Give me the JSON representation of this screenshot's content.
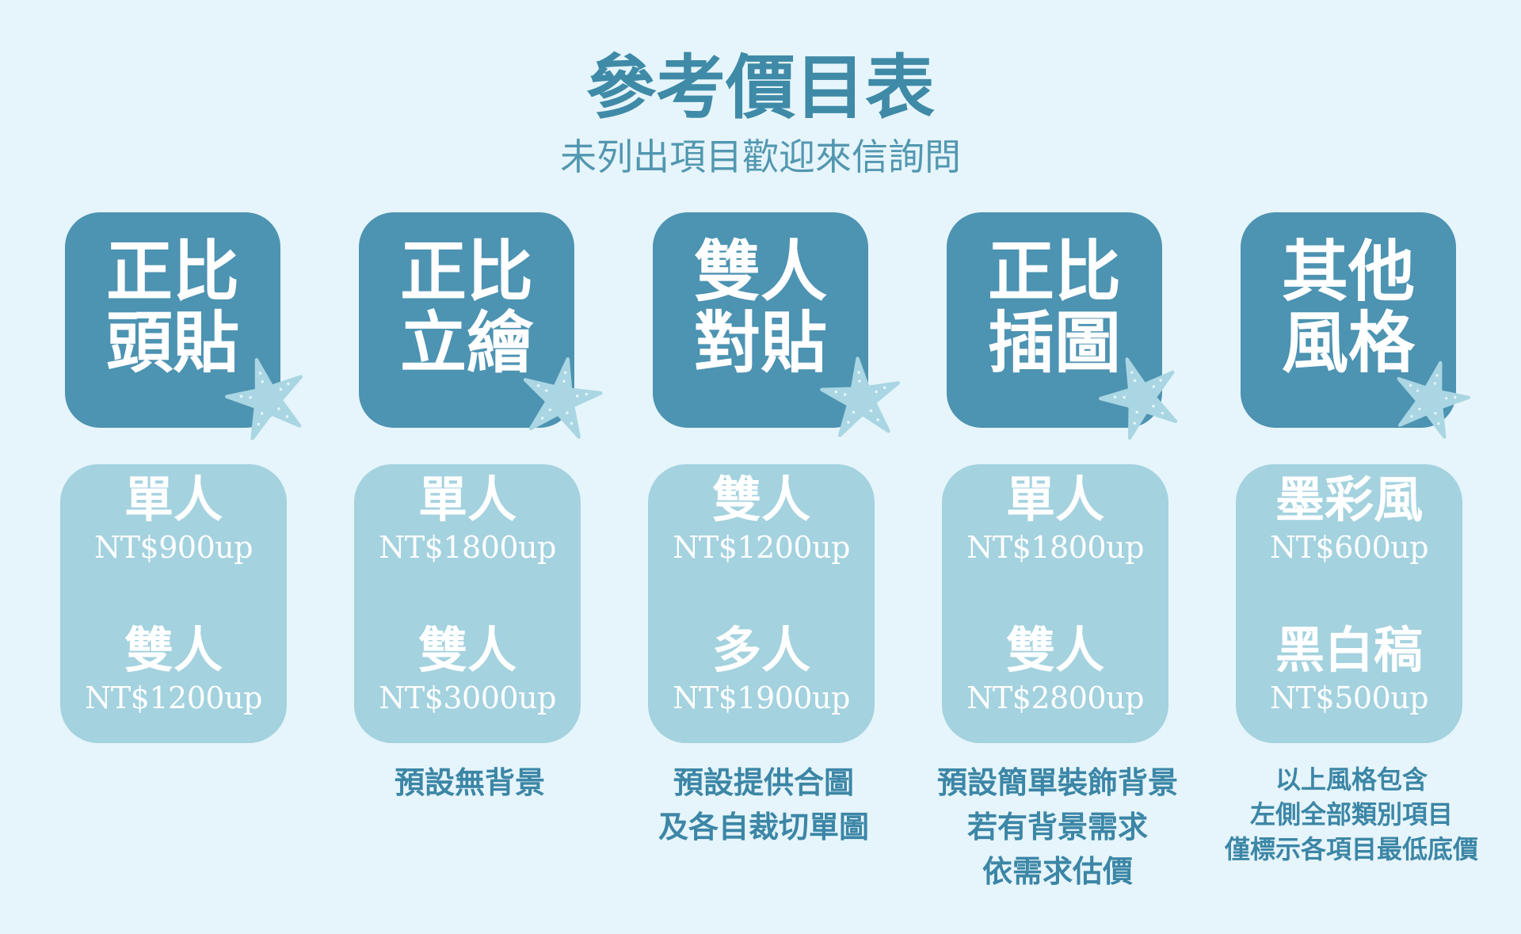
{
  "header": {
    "title": "參考價目表",
    "subtitle": "未列出項目歡迎來信詢問"
  },
  "colors": {
    "background": "#e6f5fb",
    "category_box": "#4d93b2",
    "price_box": "#a4d2df",
    "text_accent": "#3f8aa7",
    "starfish": "#a9d6e2"
  },
  "categories": [
    {
      "label": "正比\n頭貼",
      "tiers": [
        {
          "name": "單人",
          "price": "NT$900up"
        },
        {
          "name": "雙人",
          "price": "NT$1200up"
        }
      ],
      "notes": []
    },
    {
      "label": "正比\n立繪",
      "tiers": [
        {
          "name": "單人",
          "price": "NT$1800up"
        },
        {
          "name": "雙人",
          "price": "NT$3000up"
        }
      ],
      "notes": [
        "預設無背景"
      ]
    },
    {
      "label": "雙人\n對貼",
      "tiers": [
        {
          "name": "雙人",
          "price": "NT$1200up"
        },
        {
          "name": "多人",
          "price": "NT$1900up"
        }
      ],
      "notes": [
        "預設提供合圖",
        "及各自裁切單圖"
      ]
    },
    {
      "label": "正比\n插圖",
      "tiers": [
        {
          "name": "單人",
          "price": "NT$1800up"
        },
        {
          "name": "雙人",
          "price": "NT$2800up"
        }
      ],
      "notes": [
        "預設簡單裝飾背景",
        "若有背景需求",
        "依需求估價"
      ]
    },
    {
      "label": "其他\n風格",
      "tiers": [
        {
          "name": "墨彩風",
          "price": "NT$600up"
        },
        {
          "name": "黑白稿",
          "price": "NT$500up"
        }
      ],
      "notes": [
        "以上風格包含",
        "左側全部類別項目",
        "僅標示各項目最低底價"
      ]
    }
  ]
}
